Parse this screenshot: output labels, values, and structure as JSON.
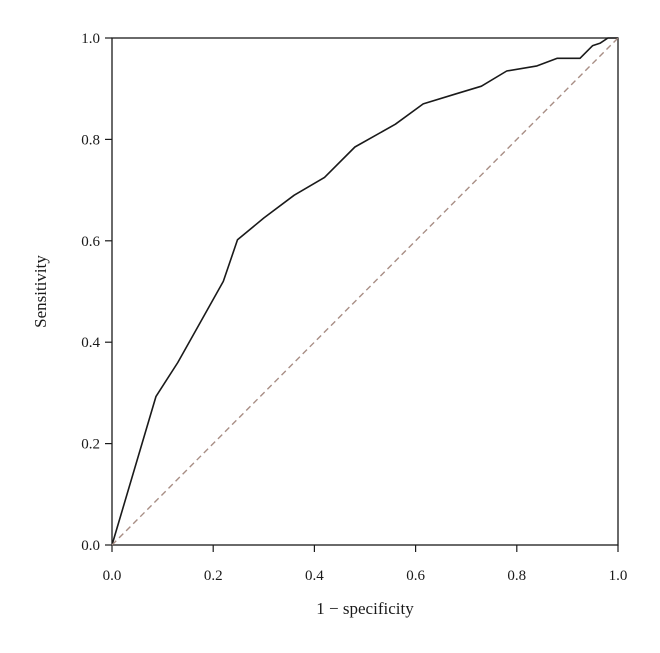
{
  "chart_data": {
    "type": "line",
    "title": "",
    "xlabel": "1 − specificity",
    "ylabel": "Sensitivity",
    "xlim": [
      0,
      1
    ],
    "ylim": [
      0,
      1
    ],
    "x_ticks": [
      "0.0",
      "0.2",
      "0.4",
      "0.6",
      "0.8",
      "1.0"
    ],
    "y_ticks": [
      "0.0",
      "0.2",
      "0.4",
      "0.6",
      "0.8",
      "1.0"
    ],
    "grid": false,
    "legend": "none",
    "series": [
      {
        "style": "solid",
        "color": "#1a1a1a",
        "x": [
          0.0,
          0.087,
          0.13,
          0.175,
          0.22,
          0.248,
          0.3,
          0.36,
          0.42,
          0.48,
          0.56,
          0.615,
          0.68,
          0.73,
          0.78,
          0.84,
          0.88,
          0.925,
          0.95,
          0.965,
          0.98,
          1.0
        ],
        "y": [
          0.0,
          0.293,
          0.36,
          0.44,
          0.52,
          0.602,
          0.645,
          0.69,
          0.725,
          0.785,
          0.83,
          0.87,
          0.89,
          0.905,
          0.935,
          0.945,
          0.96,
          0.96,
          0.985,
          0.99,
          1.0,
          1.0
        ]
      },
      {
        "style": "dashed",
        "color": "#a88e85",
        "x": [
          0,
          1
        ],
        "y": [
          0,
          1
        ]
      }
    ]
  }
}
